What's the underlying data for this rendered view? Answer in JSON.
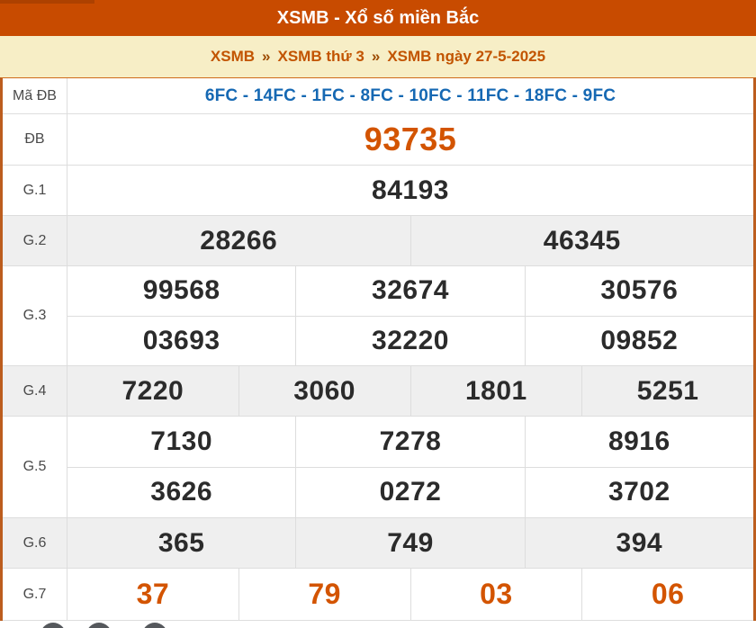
{
  "header": {
    "title": "XSMB - Xổ số miền Bắc"
  },
  "breadcrumb": {
    "separator": "»",
    "items": [
      "XSMB",
      "XSMB thứ 3",
      "XSMB ngày 27-5-2025"
    ]
  },
  "table": {
    "rows": [
      {
        "label": "Mã ĐB",
        "cells": [
          [
            "6FC - 14FC - 1FC - 8FC - 10FC - 11FC - 18FC - 9FC"
          ]
        ]
      },
      {
        "label": "ĐB",
        "cells": [
          [
            "93735"
          ]
        ]
      },
      {
        "label": "G.1",
        "cells": [
          [
            "84193"
          ]
        ]
      },
      {
        "label": "G.2",
        "cells": [
          [
            "28266",
            "46345"
          ]
        ]
      },
      {
        "label": "G.3",
        "cells": [
          [
            "99568",
            "32674",
            "30576"
          ],
          [
            "03693",
            "32220",
            "09852"
          ]
        ]
      },
      {
        "label": "G.4",
        "cells": [
          [
            "7220",
            "3060",
            "1801",
            "5251"
          ]
        ]
      },
      {
        "label": "G.5",
        "cells": [
          [
            "7130",
            "7278",
            "8916"
          ],
          [
            "3626",
            "0272",
            "3702"
          ]
        ]
      },
      {
        "label": "G.6",
        "cells": [
          [
            "365",
            "749",
            "394"
          ]
        ]
      },
      {
        "label": "G.7",
        "cells": [
          [
            "37",
            "79",
            "03",
            "06"
          ]
        ]
      }
    ]
  },
  "colors": {
    "header_bg": "#c84b00",
    "breadcrumb_bg": "#f7eec6",
    "breadcrumb_link": "#c25400",
    "accent_number": "#d35400",
    "code_blue": "#1568b3",
    "number_dark": "#2b2b2b",
    "shaded_row_bg": "#efefef",
    "table_border": "#bc5d1e"
  }
}
